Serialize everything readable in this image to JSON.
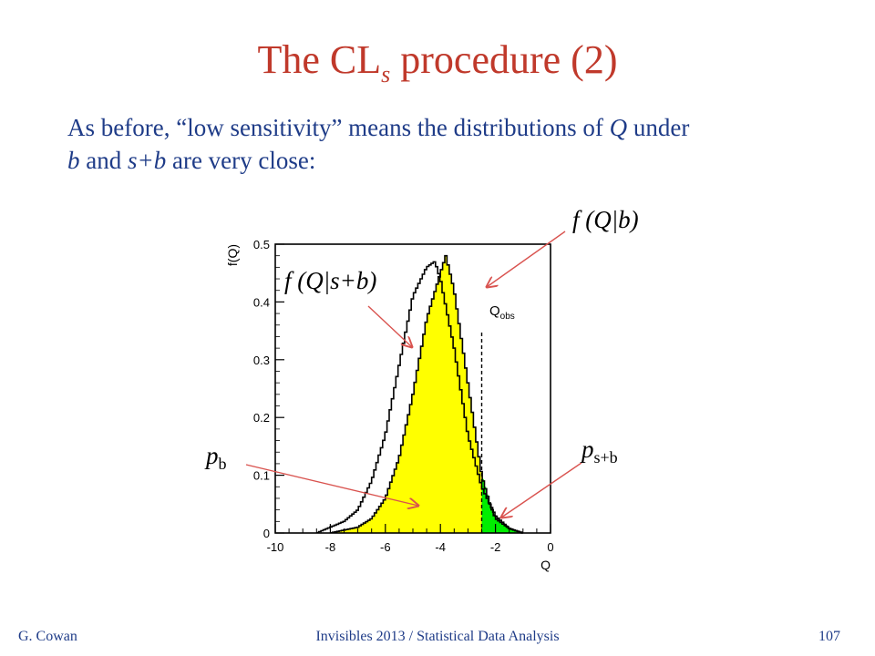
{
  "slide": {
    "title_main": "The CL",
    "title_sub": "s",
    "title_tail": " procedure (2)",
    "body_1": "As before, “low sensitivity” means the distributions of ",
    "body_q": "Q",
    "body_2": " under ",
    "body_b": "b",
    "body_3": " and ",
    "body_sb": "s+b",
    "body_4": " are very close:",
    "footer_left": "G. Cowan",
    "footer_center": "Invisibles 2013 / Statistical Data Analysis",
    "footer_right": "107"
  },
  "annotations": {
    "f_qb": "f (Q|b)",
    "f_qsb": "f (Q|s+b)",
    "p_b_main": "p",
    "p_b_sub": "b",
    "p_sb_main": "p",
    "p_sb_sub": "s+b",
    "q_obs_main": "Q",
    "q_obs_sub": "obs"
  },
  "chart_data": {
    "type": "area",
    "xlabel": "Q",
    "ylabel": "f(Q)",
    "xlim": [
      -10,
      0
    ],
    "ylim": [
      0,
      0.5
    ],
    "x_ticks": [
      -10,
      -8,
      -6,
      -4,
      -2,
      0
    ],
    "y_ticks": [
      0,
      0.1,
      0.2,
      0.3,
      0.4,
      0.5
    ],
    "q_obs": -2.5,
    "colors": {
      "fill_sb": "#ffff00",
      "fill_tail": "#00ee00",
      "line_b": "#000000"
    },
    "series": [
      {
        "name": "f (Q|s+b)",
        "x": [
          -8.0,
          -7.5,
          -7.0,
          -6.5,
          -6.0,
          -5.5,
          -5.0,
          -4.5,
          -4.0,
          -3.8,
          -3.5,
          -3.0,
          -2.5,
          -2.2,
          -2.0,
          -1.5,
          -1.0
        ],
        "y": [
          0.0,
          0.005,
          0.01,
          0.025,
          0.06,
          0.13,
          0.24,
          0.37,
          0.45,
          0.48,
          0.42,
          0.26,
          0.1,
          0.05,
          0.025,
          0.008,
          0.0
        ]
      },
      {
        "name": "f (Q|b)",
        "x": [
          -8.5,
          -8.0,
          -7.5,
          -7.0,
          -6.5,
          -6.0,
          -5.5,
          -5.0,
          -4.5,
          -4.2,
          -4.0,
          -3.5,
          -3.0,
          -2.5,
          -2.0,
          -1.5,
          -1.0
        ],
        "y": [
          0.0,
          0.01,
          0.02,
          0.04,
          0.09,
          0.17,
          0.29,
          0.41,
          0.46,
          0.47,
          0.44,
          0.32,
          0.17,
          0.08,
          0.03,
          0.008,
          0.0
        ]
      }
    ]
  }
}
